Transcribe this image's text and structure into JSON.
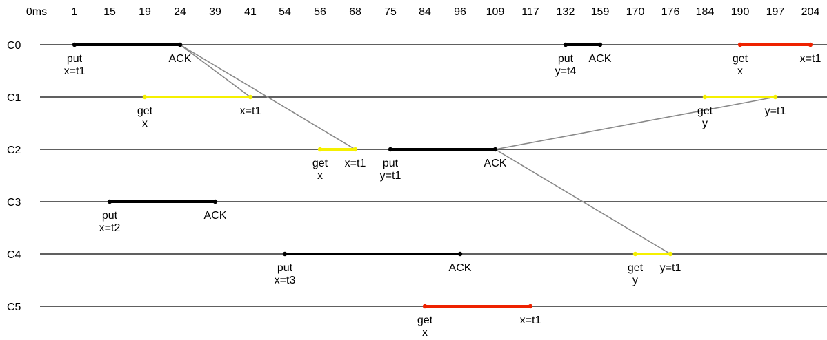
{
  "time_axis": {
    "unit_label": "0ms",
    "ticks": [
      "1",
      "15",
      "19",
      "24",
      "39",
      "41",
      "54",
      "56",
      "68",
      "75",
      "84",
      "96",
      "109",
      "117",
      "132",
      "159",
      "170",
      "176",
      "184",
      "190",
      "197",
      "204"
    ]
  },
  "clients": [
    {
      "name": "C0",
      "ops": [
        {
          "kind": "put",
          "start": "1",
          "end": "24",
          "label_start": [
            "put",
            "x=t1"
          ],
          "label_end": [
            "ACK"
          ],
          "color": "#000000"
        },
        {
          "kind": "put",
          "start": "132",
          "end": "159",
          "label_start": [
            "put",
            "y=t4"
          ],
          "label_end": [
            "ACK"
          ],
          "color": "#000000"
        },
        {
          "kind": "get",
          "start": "190",
          "end": "204",
          "label_start": [
            "get",
            "x"
          ],
          "label_end": [
            "x=t1"
          ],
          "color": "#ee2200"
        }
      ]
    },
    {
      "name": "C1",
      "ops": [
        {
          "kind": "get",
          "start": "19",
          "end": "41",
          "label_start": [
            "get",
            "x"
          ],
          "label_end": [
            "x=t1"
          ],
          "color": "#f5f000"
        },
        {
          "kind": "get",
          "start": "184",
          "end": "197",
          "label_start": [
            "get",
            "y"
          ],
          "label_end": [
            "y=t1"
          ],
          "color": "#f5f000"
        }
      ]
    },
    {
      "name": "C2",
      "ops": [
        {
          "kind": "get",
          "start": "56",
          "end": "68",
          "label_start": [
            "get",
            "x"
          ],
          "label_end": [
            "x=t1"
          ],
          "color": "#f5f000"
        },
        {
          "kind": "put",
          "start": "75",
          "end": "109",
          "label_start": [
            "put",
            "y=t1"
          ],
          "label_end": [
            "ACK"
          ],
          "color": "#000000"
        }
      ]
    },
    {
      "name": "C3",
      "ops": [
        {
          "kind": "put",
          "start": "15",
          "end": "39",
          "label_start": [
            "put",
            "x=t2"
          ],
          "label_end": [
            "ACK"
          ],
          "color": "#000000"
        }
      ]
    },
    {
      "name": "C4",
      "ops": [
        {
          "kind": "put",
          "start": "54",
          "end": "96",
          "label_start": [
            "put",
            "x=t3"
          ],
          "label_end": [
            "ACK"
          ],
          "color": "#000000"
        },
        {
          "kind": "get",
          "start": "170",
          "end": "176",
          "label_start": [
            "get",
            "y"
          ],
          "label_end": [
            "y=t1"
          ],
          "color": "#f5f000"
        }
      ]
    },
    {
      "name": "C5",
      "ops": [
        {
          "kind": "get",
          "start": "84",
          "end": "117",
          "label_start": [
            "get",
            "x"
          ],
          "label_end": [
            "x=t1"
          ],
          "color": "#ee2200"
        }
      ]
    }
  ],
  "reads_from": [
    {
      "from_client": "C0",
      "from_time": "24",
      "to_client": "C1",
      "to_time": "41"
    },
    {
      "from_client": "C0",
      "from_time": "24",
      "to_client": "C2",
      "to_time": "68"
    },
    {
      "from_client": "C2",
      "from_time": "109",
      "to_client": "C1",
      "to_time": "197"
    },
    {
      "from_client": "C2",
      "from_time": "109",
      "to_client": "C4",
      "to_time": "176"
    }
  ],
  "colors": {
    "put": "#000000",
    "get_pending": "#f5f000",
    "get_stale": "#ee2200",
    "reads_from_line": "#888888",
    "timeline": "#000000"
  }
}
